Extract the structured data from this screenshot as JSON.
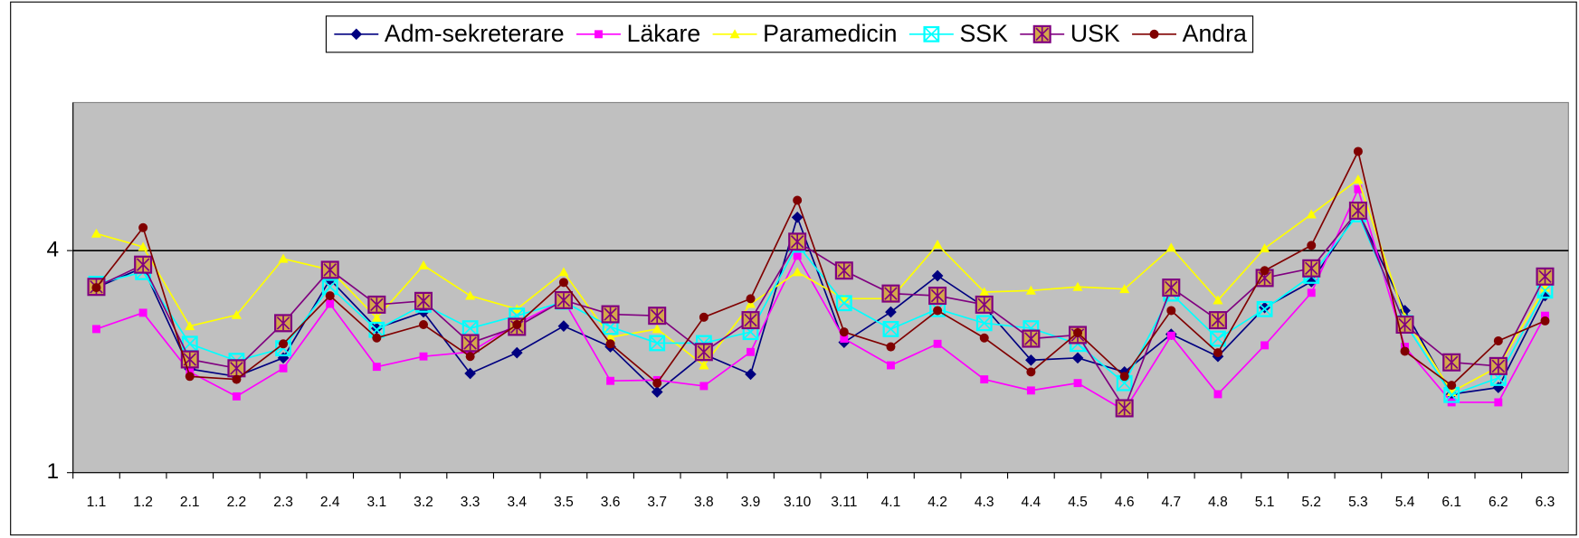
{
  "chart_data": {
    "type": "line",
    "categories": [
      "1.1",
      "1.2",
      "2.1",
      "2.2",
      "2.3",
      "2.4",
      "3.1",
      "3.2",
      "3.3",
      "3.4",
      "3.5",
      "3.6",
      "3.7",
      "3.8",
      "3.9",
      "3.10",
      "3.11",
      "4.1",
      "4.2",
      "4.3",
      "4.4",
      "4.5",
      "4.6",
      "4.7",
      "4.8",
      "5.1",
      "5.2",
      "5.3",
      "5.4",
      "6.1",
      "6.2",
      "6.3"
    ],
    "series": [
      {
        "name": "Adm-sekreterare",
        "color": "#000080",
        "marker": "diamond",
        "values": [
          3.5,
          3.77,
          2.4,
          2.3,
          2.55,
          3.61,
          2.95,
          3.17,
          2.34,
          2.62,
          2.98,
          2.7,
          2.09,
          2.6,
          2.33,
          4.45,
          2.76,
          3.17,
          3.66,
          3.24,
          2.52,
          2.55,
          2.36,
          2.87,
          2.57,
          3.23,
          3.58,
          4.53,
          3.19,
          2.06,
          2.15,
          3.39
        ]
      },
      {
        "name": "Läkare",
        "color": "#FF00FF",
        "marker": "square",
        "values": [
          2.94,
          3.16,
          2.36,
          2.03,
          2.41,
          3.28,
          2.43,
          2.57,
          2.63,
          3.01,
          3.33,
          2.24,
          2.25,
          2.17,
          2.63,
          3.93,
          2.81,
          2.45,
          2.74,
          2.26,
          2.11,
          2.21,
          1.84,
          2.85,
          2.06,
          2.72,
          3.43,
          4.83,
          2.7,
          1.95,
          1.95,
          3.12
        ]
      },
      {
        "name": "Paramedicin",
        "color": "#FFFF00",
        "marker": "triangle",
        "values": [
          4.23,
          4.05,
          2.98,
          3.13,
          3.89,
          3.74,
          3.09,
          3.8,
          3.39,
          3.21,
          3.71,
          2.83,
          2.94,
          2.45,
          3.28,
          3.71,
          3.35,
          3.35,
          4.08,
          3.44,
          3.46,
          3.51,
          3.48,
          4.04,
          3.33,
          4.03,
          4.49,
          4.96,
          3.1,
          2.09,
          2.43,
          3.5
        ]
      },
      {
        "name": "SSK",
        "color": "#00FFFF",
        "marker": "xsquare",
        "values": [
          3.55,
          3.71,
          2.74,
          2.51,
          2.68,
          3.51,
          2.93,
          3.27,
          2.95,
          3.12,
          3.31,
          2.97,
          2.75,
          2.75,
          2.9,
          4.08,
          3.29,
          2.94,
          3.21,
          3.02,
          2.95,
          2.74,
          2.21,
          3.42,
          2.81,
          3.21,
          3.66,
          4.49,
          3.02,
          2.05,
          2.28,
          3.46
        ]
      },
      {
        "name": "USK",
        "color": "#800080",
        "marker": "starsquare",
        "values": [
          3.51,
          3.81,
          2.53,
          2.41,
          3.02,
          3.74,
          3.27,
          3.32,
          2.75,
          2.97,
          3.33,
          3.14,
          3.12,
          2.63,
          3.06,
          4.12,
          3.73,
          3.42,
          3.39,
          3.27,
          2.81,
          2.86,
          1.87,
          3.5,
          3.06,
          3.63,
          3.76,
          4.54,
          3.0,
          2.49,
          2.44,
          3.65
        ]
      },
      {
        "name": "Andra",
        "color": "#800000",
        "marker": "circle",
        "values": [
          3.5,
          4.31,
          2.3,
          2.26,
          2.74,
          3.39,
          2.82,
          3.0,
          2.57,
          3.0,
          3.57,
          2.74,
          2.21,
          3.1,
          3.35,
          4.68,
          2.9,
          2.7,
          3.19,
          2.82,
          2.36,
          2.89,
          2.3,
          3.19,
          2.62,
          3.73,
          4.07,
          5.34,
          2.64,
          2.18,
          2.78,
          3.05
        ]
      }
    ],
    "ylim": [
      1,
      6
    ],
    "yticks": [
      1,
      4
    ],
    "grid": true,
    "legend": "top",
    "plot_background": "#C0C0C0"
  }
}
